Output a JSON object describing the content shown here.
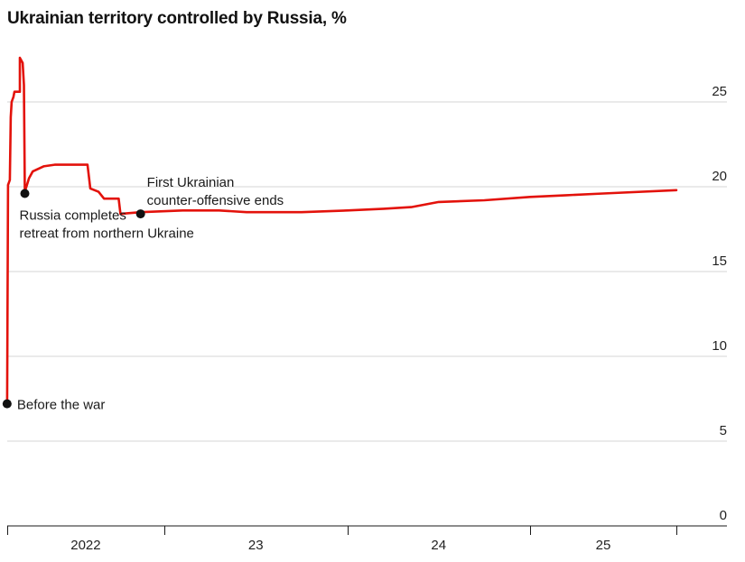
{
  "chart_data": {
    "type": "line",
    "title": "Ukrainian territory controlled by Russia, %",
    "xlabel": "",
    "ylabel": "",
    "ylim": [
      0,
      27.5
    ],
    "xlim": [
      2022.14,
      2025.82
    ],
    "grid": true,
    "y_ticks": [
      {
        "value": 0,
        "label": "0"
      },
      {
        "value": 5,
        "label": "5"
      },
      {
        "value": 10,
        "label": "10"
      },
      {
        "value": 15,
        "label": "15"
      },
      {
        "value": 20,
        "label": "20"
      },
      {
        "value": 25,
        "label": "25"
      }
    ],
    "x_tick_marks": [
      2022.14,
      2023.0,
      2024.0,
      2025.0,
      2025.8
    ],
    "x_labels": [
      {
        "value": 2022.57,
        "label": "2022"
      },
      {
        "value": 2023.5,
        "label": "23"
      },
      {
        "value": 2024.5,
        "label": "24"
      },
      {
        "value": 2025.4,
        "label": "25"
      }
    ],
    "series": [
      {
        "name": "Ukrainian territory controlled by Russia",
        "color": "#e3120b",
        "x": [
          2022.14,
          2022.145,
          2022.155,
          2022.16,
          2022.165,
          2022.175,
          2022.18,
          2022.195,
          2022.21,
          2022.21,
          2022.225,
          2022.232,
          2022.237,
          2022.26,
          2022.28,
          2022.3,
          2022.34,
          2022.4,
          2022.5,
          2022.58,
          2022.595,
          2022.64,
          2022.67,
          2022.75,
          2022.76,
          2022.87,
          2023.1,
          2023.3,
          2023.45,
          2023.75,
          2024.0,
          2024.2,
          2024.35,
          2024.5,
          2024.75,
          2025.0,
          2025.2,
          2025.4,
          2025.8
        ],
        "y": [
          7.2,
          20.1,
          20.4,
          24.1,
          25.0,
          25.3,
          25.6,
          25.6,
          25.6,
          27.6,
          27.3,
          26.0,
          19.7,
          20.5,
          20.9,
          21.0,
          21.2,
          21.3,
          21.3,
          21.3,
          19.9,
          19.7,
          19.3,
          19.3,
          18.4,
          18.5,
          18.6,
          18.6,
          18.5,
          18.5,
          18.6,
          18.7,
          18.8,
          19.1,
          19.2,
          19.4,
          19.5,
          19.6,
          19.8
        ]
      }
    ],
    "annotations": [
      {
        "x": 2022.14,
        "y": 7.2,
        "lines": [
          "Before the war"
        ]
      },
      {
        "x": 2022.237,
        "y": 19.6,
        "lines": [
          "Russia completes",
          "retreat from northern Ukraine"
        ]
      },
      {
        "x": 2022.87,
        "y": 18.4,
        "lines": [
          "First Ukrainian",
          "counter-offensive ends"
        ]
      }
    ]
  }
}
